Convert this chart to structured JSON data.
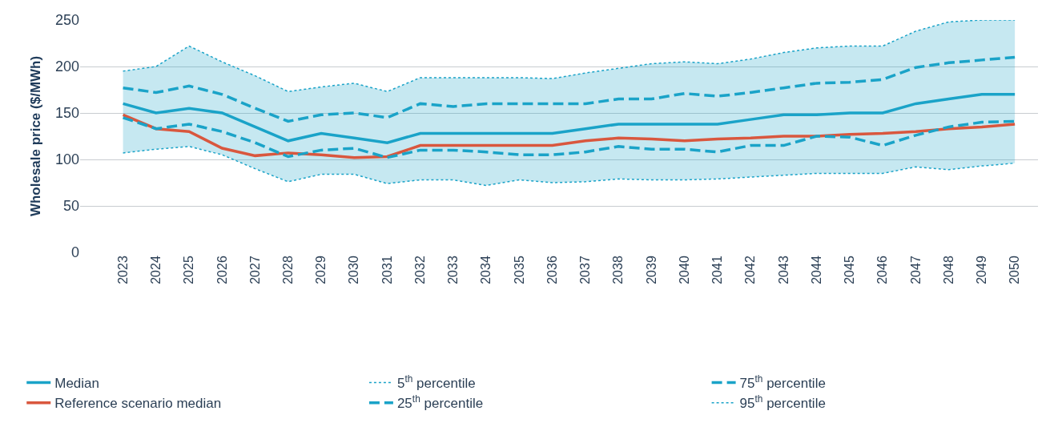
{
  "chart_data": {
    "type": "line",
    "ylabel": "Wholesale price ($/MWh)",
    "categories": [
      "2023",
      "2024",
      "2025",
      "2026",
      "2027",
      "2028",
      "2029",
      "2030",
      "2031",
      "2032",
      "2033",
      "2034",
      "2035",
      "2036",
      "2037",
      "2038",
      "2039",
      "2040",
      "2041",
      "2042",
      "2043",
      "2044",
      "2045",
      "2046",
      "2047",
      "2048",
      "2049",
      "2050"
    ],
    "ylim": [
      0,
      250
    ],
    "yticks": [
      0,
      50,
      100,
      150,
      200,
      250
    ],
    "grid": "y",
    "legend": "bottom",
    "marker": "none",
    "series": [
      {
        "name": "Median",
        "color": "#1aa3c8",
        "line_style": "solid",
        "values": [
          160,
          150,
          155,
          150,
          135,
          120,
          128,
          123,
          118,
          128,
          128,
          128,
          128,
          128,
          133,
          138,
          138,
          138,
          138,
          143,
          148,
          148,
          150,
          150,
          160,
          165,
          170,
          170
        ],
        "lower": [
          107,
          111,
          114,
          105,
          90,
          76,
          84,
          84,
          74,
          78,
          78,
          72,
          78,
          75,
          76,
          79,
          78,
          78,
          79,
          81,
          83,
          85,
          85,
          85,
          92,
          89,
          93,
          96
        ],
        "upper": [
          195,
          200,
          222,
          205,
          190,
          173,
          178,
          182,
          173,
          188,
          188,
          188,
          188,
          187,
          193,
          198,
          203,
          205,
          203,
          208,
          215,
          220,
          222,
          222,
          238,
          248,
          250,
          250
        ]
      },
      {
        "name": "Reference scenario median",
        "color": "#d9573e",
        "line_style": "solid",
        "values": [
          148,
          133,
          130,
          112,
          104,
          107,
          105,
          102,
          103,
          115,
          115,
          115,
          115,
          115,
          120,
          123,
          122,
          120,
          122,
          123,
          125,
          125,
          127,
          128,
          130,
          133,
          135,
          138
        ]
      },
      {
        "name": "5$^{th}$ percentile",
        "color": "#1aa3c8",
        "line_style": "dotted",
        "values": [
          107,
          111,
          114,
          105,
          90,
          76,
          84,
          84,
          74,
          78,
          78,
          72,
          78,
          75,
          76,
          79,
          78,
          78,
          79,
          81,
          83,
          85,
          85,
          85,
          92,
          89,
          93,
          96
        ]
      },
      {
        "name": "25$^{th}$ percentile",
        "color": "#1aa3c8",
        "line_style": "dashed",
        "values": [
          145,
          133,
          138,
          130,
          118,
          103,
          110,
          112,
          102,
          110,
          110,
          108,
          105,
          105,
          108,
          114,
          111,
          111,
          108,
          115,
          115,
          125,
          124,
          115,
          126,
          135,
          140,
          141
        ]
      },
      {
        "name": "75$^{th}$ percentile",
        "color": "#1aa3c8",
        "line_style": "dashed",
        "values": [
          177,
          172,
          179,
          170,
          155,
          141,
          148,
          150,
          145,
          160,
          157,
          160,
          160,
          160,
          160,
          165,
          165,
          171,
          168,
          172,
          177,
          182,
          183,
          186,
          199,
          204,
          207,
          210
        ]
      },
      {
        "name": "95$^{th}$ percentile",
        "color": "#1aa3c8",
        "line_style": "dotted",
        "values": [
          195,
          200,
          222,
          205,
          190,
          173,
          178,
          182,
          173,
          188,
          188,
          188,
          188,
          187,
          193,
          198,
          203,
          205,
          203,
          208,
          215,
          220,
          222,
          222,
          238,
          248,
          250,
          250
        ]
      }
    ]
  }
}
